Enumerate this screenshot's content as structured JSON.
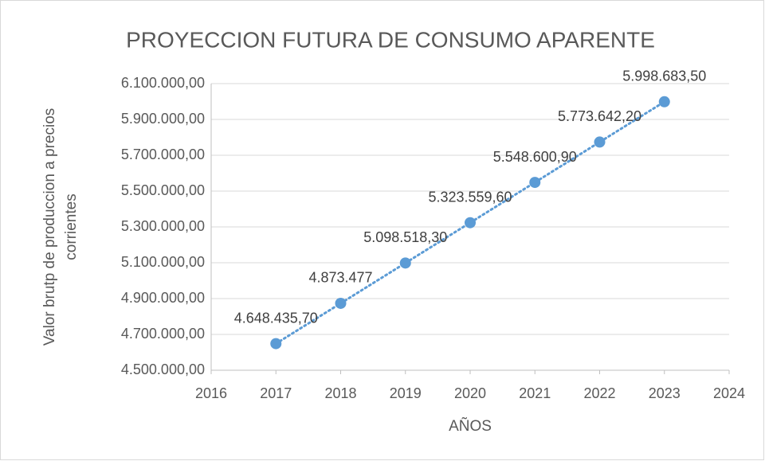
{
  "chart_data": {
    "type": "scatter",
    "title": "PROYECCION FUTURA DE CONSUMO APARENTE",
    "x_label": "AÑOS",
    "y_label": [
      "Valor brutp de produccion a precios",
      "corrientes"
    ],
    "series": [
      {
        "color": "#5b9bd5",
        "x": [
          2017,
          2018,
          2019,
          2020,
          2021,
          2022,
          2023
        ],
        "values": [
          4648435.7,
          4873477,
          5098518.3,
          5323559.6,
          5548600.9,
          5773642.2,
          5998683.5
        ],
        "value_labels": [
          "4.648.435,70",
          "4.873.477",
          "5.098.518,30",
          "5.323.559,60",
          "5.548.600,90",
          "5.773.642,20",
          "5.998.683,50"
        ]
      }
    ],
    "xlim": [
      2016,
      2024
    ],
    "xticks": [
      2016,
      2017,
      2018,
      2019,
      2020,
      2021,
      2022,
      2023,
      2024
    ],
    "ylim": [
      4500000,
      6100000
    ],
    "yticks": [
      {
        "value": 4500000,
        "label": "4.500.000,00"
      },
      {
        "value": 4700000,
        "label": "4.700.000,00"
      },
      {
        "value": 4900000,
        "label": "4.900.000,00"
      },
      {
        "value": 5100000,
        "label": "5.100.000,00"
      },
      {
        "value": 5300000,
        "label": "5.300.000,00"
      },
      {
        "value": 5500000,
        "label": "5.500.000,00"
      },
      {
        "value": 5700000,
        "label": "5.700.000,00"
      },
      {
        "value": 5900000,
        "label": "5.900.000,00"
      },
      {
        "value": 6100000,
        "label": "6.100.000,00"
      }
    ],
    "grid": true
  }
}
